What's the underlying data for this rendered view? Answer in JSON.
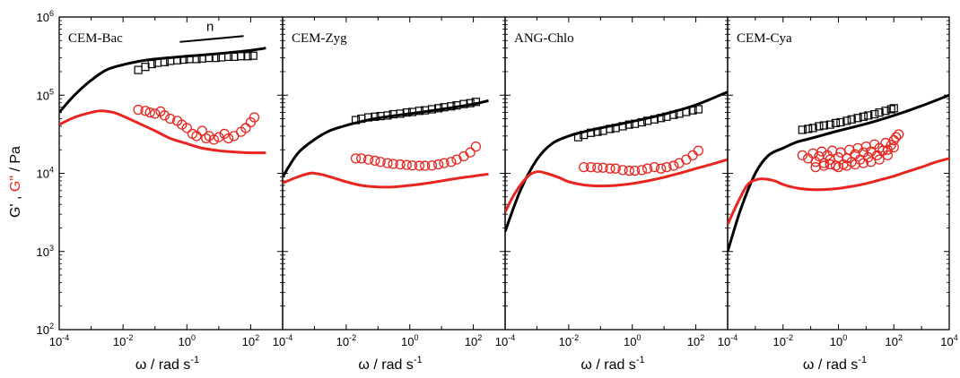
{
  "figure": {
    "ylabel_prefix": "G' , ",
    "ylabel_red": "G\"",
    "ylabel_suffix": " / Pa",
    "xlabel": "ω / rad s",
    "xlabel_exp": "-1"
  },
  "colors": {
    "storage": "#000000",
    "loss": "#e8251f",
    "axis": "#000000"
  },
  "chart_data": [
    {
      "type": "scatter",
      "title": "CEM-Bac",
      "annotation": "n",
      "x_scale": "log",
      "y_scale": "log",
      "xlim": [
        0.0001,
        1000
      ],
      "ylim": [
        100,
        1000000
      ],
      "x_ticks": [
        "10^-4",
        "10^-2",
        "10^0",
        "10^2"
      ],
      "y_ticks": [
        "10^2",
        "10^3",
        "10^4",
        "10^5",
        "10^6"
      ],
      "slope_line": [
        [
          0.6,
          480000
        ],
        [
          60,
          570000
        ]
      ],
      "series": [
        {
          "kind": "line",
          "color": "#000000",
          "x": [
            0.0001,
            0.0003,
            0.001,
            0.003,
            0.01,
            0.03,
            0.1,
            1,
            10,
            100,
            300
          ],
          "y": [
            60000,
            100000,
            155000,
            210000,
            245000,
            270000,
            290000,
            315000,
            340000,
            375000,
            400000
          ]
        },
        {
          "kind": "line",
          "color": "#e8251f",
          "x": [
            0.0001,
            0.0003,
            0.001,
            0.002,
            0.005,
            0.01,
            0.03,
            0.1,
            0.3,
            1,
            3,
            10,
            30,
            100,
            300
          ],
          "y": [
            42000,
            52000,
            60000,
            63000,
            60000,
            54000,
            44000,
            35000,
            28000,
            24000,
            21000,
            19500,
            18800,
            18300,
            18300
          ]
        },
        {
          "kind": "squares",
          "color": "#000000",
          "x": [
            0.03,
            0.05,
            0.08,
            0.12,
            0.2,
            0.3,
            0.5,
            0.8,
            1.2,
            2,
            3,
            5,
            8,
            12,
            20,
            30,
            50,
            80,
            120
          ],
          "y": [
            210000,
            230000,
            250000,
            260000,
            265000,
            275000,
            280000,
            285000,
            290000,
            290000,
            295000,
            300000,
            300000,
            305000,
            310000,
            310000,
            315000,
            315000,
            320000
          ]
        },
        {
          "kind": "circles",
          "color": "#e8251f",
          "x": [
            0.03,
            0.05,
            0.07,
            0.1,
            0.15,
            0.2,
            0.3,
            0.5,
            0.7,
            1,
            1.5,
            2,
            3,
            4,
            5,
            7,
            10,
            15,
            20,
            30,
            50,
            70,
            100,
            130
          ],
          "y": [
            65000,
            63000,
            60000,
            58000,
            62000,
            55000,
            50000,
            47000,
            42000,
            38000,
            32000,
            30000,
            35000,
            28000,
            30000,
            27000,
            29000,
            32000,
            28000,
            30000,
            34000,
            38000,
            45000,
            52000
          ]
        }
      ]
    },
    {
      "type": "scatter",
      "title": "CEM-Zyg",
      "x_scale": "log",
      "y_scale": "log",
      "xlim": [
        0.0001,
        1000
      ],
      "ylim": [
        100,
        1000000
      ],
      "x_ticks": [
        "10^-4",
        "10^-2",
        "10^0",
        "10^2"
      ],
      "series": [
        {
          "kind": "line",
          "color": "#000000",
          "x": [
            0.0001,
            0.0003,
            0.001,
            0.003,
            0.01,
            0.03,
            0.1,
            1,
            10,
            100,
            300
          ],
          "y": [
            9000,
            18000,
            27000,
            35000,
            41000,
            46000,
            51000,
            58000,
            66000,
            77000,
            85000
          ]
        },
        {
          "kind": "line",
          "color": "#e8251f",
          "x": [
            0.0001,
            0.0003,
            0.0007,
            0.001,
            0.002,
            0.005,
            0.01,
            0.03,
            0.1,
            0.3,
            1,
            3,
            10,
            30,
            100,
            300
          ],
          "y": [
            7500,
            9000,
            10000,
            10000,
            9500,
            8500,
            7800,
            7000,
            6700,
            6700,
            7000,
            7400,
            8000,
            8600,
            9200,
            9800
          ]
        },
        {
          "kind": "squares",
          "color": "#000000",
          "x": [
            0.02,
            0.03,
            0.05,
            0.08,
            0.12,
            0.2,
            0.3,
            0.5,
            0.8,
            1.2,
            2,
            3,
            5,
            8,
            12,
            20,
            30,
            50,
            80,
            120
          ],
          "y": [
            48000,
            50000,
            52000,
            53000,
            54000,
            55000,
            57000,
            58000,
            60000,
            61000,
            63000,
            64000,
            66000,
            68000,
            70000,
            72000,
            74000,
            77000,
            79000,
            82000
          ]
        },
        {
          "kind": "circles",
          "color": "#e8251f",
          "x": [
            0.02,
            0.03,
            0.05,
            0.08,
            0.12,
            0.2,
            0.3,
            0.5,
            0.8,
            1.2,
            2,
            3,
            5,
            8,
            12,
            20,
            30,
            50,
            80,
            120
          ],
          "y": [
            15500,
            15500,
            15000,
            14500,
            14000,
            13500,
            13200,
            13000,
            12800,
            12600,
            12500,
            12500,
            12600,
            13000,
            13500,
            14000,
            15000,
            16500,
            18500,
            22000
          ]
        }
      ]
    },
    {
      "type": "scatter",
      "title": "ANG-Chlo",
      "x_scale": "log",
      "y_scale": "log",
      "xlim": [
        0.0001,
        1000
      ],
      "ylim": [
        100,
        1000000
      ],
      "x_ticks": [
        "10^-4",
        "10^-2",
        "10^0",
        "10^2"
      ],
      "series": [
        {
          "kind": "line",
          "color": "#000000",
          "x": [
            0.0001,
            0.0003,
            0.001,
            0.003,
            0.01,
            0.03,
            0.1,
            1,
            10,
            100,
            1000
          ],
          "y": [
            1800,
            6000,
            15000,
            24000,
            30000,
            34000,
            38000,
            46000,
            57000,
            75000,
            110000
          ]
        },
        {
          "kind": "line",
          "color": "#e8251f",
          "x": [
            0.0001,
            0.0002,
            0.0005,
            0.001,
            0.002,
            0.005,
            0.01,
            0.03,
            0.1,
            0.3,
            1,
            3,
            10,
            30,
            100,
            300,
            1000
          ],
          "y": [
            3200,
            5500,
            9000,
            10500,
            10000,
            8800,
            7800,
            7100,
            6900,
            7000,
            7400,
            8000,
            8900,
            10000,
            11500,
            13000,
            15000
          ]
        },
        {
          "kind": "squares",
          "color": "#000000",
          "x": [
            0.02,
            0.03,
            0.05,
            0.08,
            0.12,
            0.2,
            0.3,
            0.5,
            0.8,
            1.2,
            2,
            3,
            5,
            8,
            12,
            20,
            30,
            50,
            80,
            120
          ],
          "y": [
            29000,
            31000,
            33000,
            34000,
            35000,
            37000,
            38000,
            40000,
            42000,
            43000,
            45000,
            47000,
            49000,
            51000,
            53000,
            56000,
            58000,
            61000,
            64000,
            66000
          ]
        },
        {
          "kind": "circles",
          "color": "#e8251f",
          "x": [
            0.03,
            0.05,
            0.08,
            0.12,
            0.2,
            0.3,
            0.5,
            0.8,
            1.2,
            2,
            3,
            5,
            8,
            12,
            20,
            30,
            50,
            80,
            120
          ],
          "y": [
            12000,
            12000,
            11800,
            11800,
            11500,
            11500,
            11000,
            10800,
            10800,
            11000,
            11500,
            12000,
            11500,
            12000,
            12500,
            13500,
            15000,
            17000,
            19500
          ]
        }
      ]
    },
    {
      "type": "scatter",
      "title": "CEM-Cya",
      "x_scale": "log",
      "y_scale": "log",
      "xlim": [
        0.0001,
        10000
      ],
      "ylim": [
        100,
        1000000
      ],
      "x_ticks": [
        "10^-4",
        "10^-2",
        "10^0",
        "10^2",
        "10^4"
      ],
      "series": [
        {
          "kind": "line",
          "color": "#000000",
          "x": [
            0.0001,
            0.0003,
            0.001,
            0.003,
            0.01,
            0.03,
            0.1,
            1,
            10,
            100,
            1000,
            10000
          ],
          "y": [
            1000,
            3500,
            10000,
            17000,
            21000,
            25000,
            28000,
            35000,
            43000,
            55000,
            73000,
            100000
          ]
        },
        {
          "kind": "line",
          "color": "#e8251f",
          "x": [
            0.0001,
            0.0002,
            0.0005,
            0.001,
            0.002,
            0.005,
            0.01,
            0.03,
            0.1,
            0.3,
            1,
            3,
            10,
            30,
            100,
            300,
            1000,
            3000,
            10000
          ],
          "y": [
            2200,
            3800,
            7000,
            8200,
            8500,
            8000,
            7200,
            6500,
            6200,
            6200,
            6400,
            6800,
            7400,
            8200,
            9200,
            10500,
            12000,
            13800,
            15500
          ]
        },
        {
          "kind": "squares",
          "color": "#000000",
          "x": [
            0.05,
            0.08,
            0.12,
            0.2,
            0.3,
            0.5,
            0.8,
            1.2,
            2,
            3,
            5,
            8,
            12,
            20,
            30,
            50,
            80,
            100
          ],
          "y": [
            36000,
            37000,
            38000,
            40000,
            41000,
            42000,
            44000,
            45000,
            47000,
            49000,
            51000,
            53000,
            55000,
            57000,
            60000,
            63000,
            66000,
            68000
          ]
        },
        {
          "kind": "circles",
          "color": "#e8251f",
          "x": [
            0.05,
            0.08,
            0.12,
            0.15,
            0.2,
            0.25,
            0.3,
            0.4,
            0.5,
            0.6,
            0.8,
            1,
            1.2,
            1.5,
            2,
            2.5,
            3,
            4,
            5,
            6,
            8,
            10,
            12,
            15,
            20,
            25,
            30,
            40,
            50,
            60,
            80,
            100,
            120,
            150,
            0.15,
            0.3,
            0.5,
            1,
            2,
            4,
            8,
            15,
            30,
            60,
            100
          ],
          "y": [
            17000,
            15500,
            18000,
            14000,
            16500,
            19000,
            13500,
            17000,
            15000,
            19500,
            12500,
            16000,
            18500,
            13000,
            15500,
            20000,
            14000,
            17500,
            21000,
            15000,
            18500,
            22000,
            16000,
            19000,
            23500,
            17000,
            21000,
            19500,
            24500,
            20000,
            23000,
            26500,
            29000,
            31500,
            12000,
            12500,
            13000,
            12000,
            12500,
            13000,
            13500,
            14000,
            15000,
            17000,
            21500
          ]
        }
      ]
    }
  ]
}
